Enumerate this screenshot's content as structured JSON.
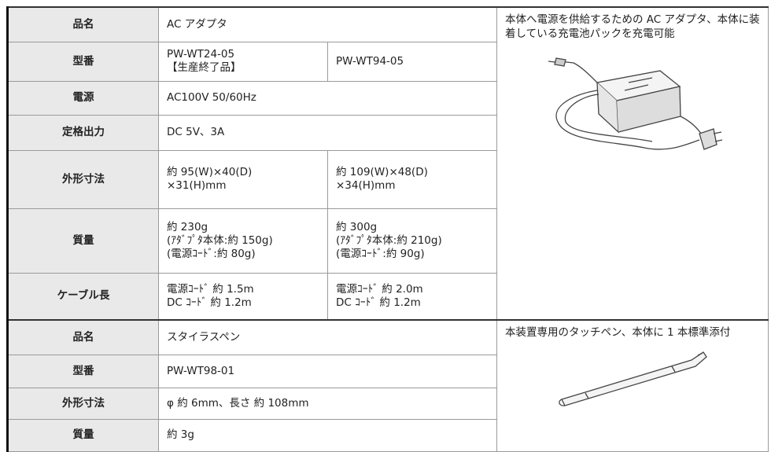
{
  "products": [
    {
      "rows": [
        {
          "label": "品名",
          "values": [
            "AC アダプタ"
          ]
        },
        {
          "label": "型番",
          "values": [
            "PW-WT24-05\n【生産終了品】",
            "PW-WT94-05"
          ]
        },
        {
          "label": "電源",
          "values": [
            "AC100V 50/60Hz"
          ]
        },
        {
          "label": "定格出力",
          "values": [
            "DC 5V、3A"
          ]
        },
        {
          "label": "外形寸法",
          "values": [
            "約 95(W)×40(D)\n×31(H)mm",
            "約 109(W)×48(D)\n×34(H)mm"
          ]
        },
        {
          "label": "質量",
          "values": [
            "約 230g\n(ｱﾀﾞﾌﾟﾀ本体:約 150g)\n(電源ｺｰﾄﾞ:約 80g)",
            "約 300g\n(ｱﾀﾞﾌﾟﾀ本体:約 210g)\n(電源ｺｰﾄﾞ:約 90g)"
          ]
        },
        {
          "label": "ケーブル長",
          "values": [
            "電源ｺｰﾄﾞ 約 1.5m\nDC ｺｰﾄﾞ 約 1.2m",
            "電源ｺｰﾄﾞ 約 2.0m\nDC ｺｰﾄﾞ 約 1.2m"
          ]
        }
      ],
      "description": "本体へ電源を供給するための AC アダプタ、本体に装着している充電池パックを充電可能"
    },
    {
      "rows": [
        {
          "label": "品名",
          "values": [
            "スタイラスペン"
          ]
        },
        {
          "label": "型番",
          "values": [
            "PW-WT98-01"
          ]
        },
        {
          "label": "外形寸法",
          "values": [
            "φ 約 6mm、長さ 約 108mm"
          ]
        },
        {
          "label": "質量",
          "values": [
            "約 3g"
          ]
        }
      ],
      "description": "本装置専用のタッチペン、本体に 1 本標準添付"
    }
  ]
}
